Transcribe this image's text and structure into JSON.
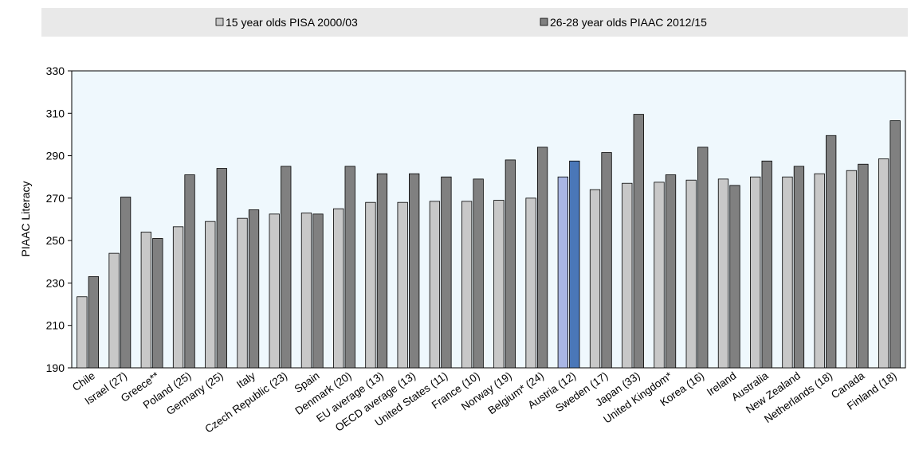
{
  "legend": {
    "items": [
      {
        "label": "15 year olds PISA 2000/03",
        "color": "#c8c8c8"
      },
      {
        "label": "26-28 year olds PIAAC 2012/15",
        "color": "#808080"
      }
    ]
  },
  "chart_data": {
    "type": "bar",
    "ylabel": "PIAAC Literacy",
    "xlabel": "",
    "ylim": [
      190,
      330
    ],
    "yticks": [
      190,
      210,
      230,
      250,
      270,
      290,
      310,
      330
    ],
    "grid": false,
    "legend_position": "top",
    "plot_background": "#eff8fd",
    "highlight_category": "Austria (12)",
    "highlight_colors": {
      "light": "#a9b6e4",
      "dark": "#4a77b8"
    },
    "categories": [
      "Chile",
      "Israel (27)",
      "Greece**",
      "Poland (25)",
      "Germany (25)",
      "Italy",
      "Czech Republic (23)",
      "Spain",
      "Denmark (20)",
      "EU average (13)",
      "OECD average (13)",
      "United States (11)",
      "France (10)",
      "Norway (19)",
      "Belgium* (24)",
      "Austria (12)",
      "Sweden (17)",
      "Japan (33)",
      "United Kingdom*",
      "Korea (16)",
      "Ireland",
      "Australia",
      "New Zealand",
      "Netherlands (18)",
      "Canada",
      "Finland (18)"
    ],
    "series": [
      {
        "name": "15 year olds PISA 2000/03",
        "color": "#c8c8c8",
        "values": [
          223.5,
          244,
          254,
          256.5,
          259,
          260.5,
          262.5,
          263,
          265,
          268,
          268,
          268.5,
          268.5,
          269,
          270,
          280,
          274,
          277,
          277.5,
          278.5,
          279,
          280,
          280,
          281.5,
          283,
          288.5
        ]
      },
      {
        "name": "26-28 year olds PIAAC 2012/15",
        "color": "#808080",
        "values": [
          233,
          270.5,
          251,
          281,
          284,
          264.5,
          285,
          262.5,
          285,
          281.5,
          281.5,
          280,
          279,
          288,
          294,
          287.5,
          291.5,
          309.5,
          281,
          294,
          276,
          287.5,
          285,
          299.5,
          286,
          306.5
        ]
      }
    ]
  }
}
